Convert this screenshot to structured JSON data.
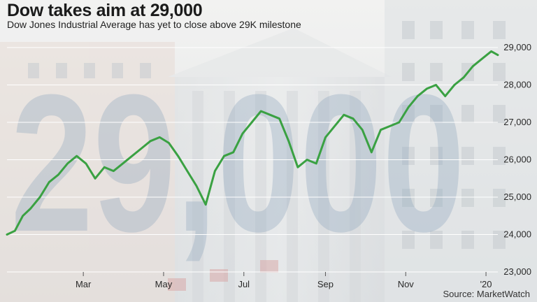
{
  "header": {
    "title": "Dow takes aim at 29,000",
    "subtitle": "Dow Jones Industrial Average has yet to close above 29K milestone"
  },
  "footer": {
    "source": "Source: MarketWatch"
  },
  "background": {
    "watermark_text": "29,000"
  },
  "colors": {
    "line": "#3aa142",
    "grid": "#ffffff",
    "text": "#1b1b1b"
  },
  "chart_data": {
    "type": "line",
    "title": "Dow takes aim at 29,000",
    "subtitle": "Dow Jones Industrial Average has yet to close above 29K milestone",
    "xlabel": "",
    "ylabel": "",
    "x_ticks": [
      "Mar",
      "May",
      "Jul",
      "Sep",
      "Nov",
      "'20"
    ],
    "y_ticks": [
      23000,
      24000,
      25000,
      26000,
      27000,
      28000,
      29000
    ],
    "y_tick_labels": [
      "23,000",
      "24,000",
      "25,000",
      "26,000",
      "27,000",
      "28,000",
      "29,000"
    ],
    "ylim": [
      23000,
      29300
    ],
    "x_start": "2019-01-02",
    "x_end": "2020-01-10",
    "grid": "horizontal",
    "series": [
      {
        "x": [
          "2019-01-02",
          "2019-01-08",
          "2019-01-14",
          "2019-01-20",
          "2019-01-27",
          "2019-02-03",
          "2019-02-10",
          "2019-02-17",
          "2019-02-24",
          "2019-03-03",
          "2019-03-10",
          "2019-03-17",
          "2019-03-24",
          "2019-03-31",
          "2019-04-07",
          "2019-04-14",
          "2019-04-21",
          "2019-04-28",
          "2019-05-05",
          "2019-05-12",
          "2019-05-19",
          "2019-05-26",
          "2019-06-02",
          "2019-06-09",
          "2019-06-16",
          "2019-06-23",
          "2019-06-30",
          "2019-07-07",
          "2019-07-14",
          "2019-07-21",
          "2019-07-28",
          "2019-08-04",
          "2019-08-11",
          "2019-08-18",
          "2019-08-25",
          "2019-09-01",
          "2019-09-08",
          "2019-09-15",
          "2019-09-22",
          "2019-09-29",
          "2019-10-06",
          "2019-10-13",
          "2019-10-20",
          "2019-10-27",
          "2019-11-03",
          "2019-11-10",
          "2019-11-17",
          "2019-11-24",
          "2019-12-01",
          "2019-12-08",
          "2019-12-15",
          "2019-12-22",
          "2019-12-29",
          "2020-01-05",
          "2020-01-10"
        ],
        "values": [
          24000,
          24100,
          24500,
          24700,
          25000,
          25400,
          25600,
          25900,
          26100,
          25900,
          25500,
          25800,
          25700,
          25900,
          26100,
          26300,
          26500,
          26600,
          26450,
          26100,
          25700,
          25300,
          24800,
          25700,
          26100,
          26200,
          26700,
          27000,
          27300,
          27200,
          27100,
          26500,
          25800,
          26000,
          25900,
          26600,
          26900,
          27200,
          27100,
          26800,
          26200,
          26800,
          26900,
          27000,
          27400,
          27700,
          27900,
          28000,
          27700,
          28000,
          28200,
          28500,
          28700,
          28900,
          28800
        ]
      }
    ]
  }
}
